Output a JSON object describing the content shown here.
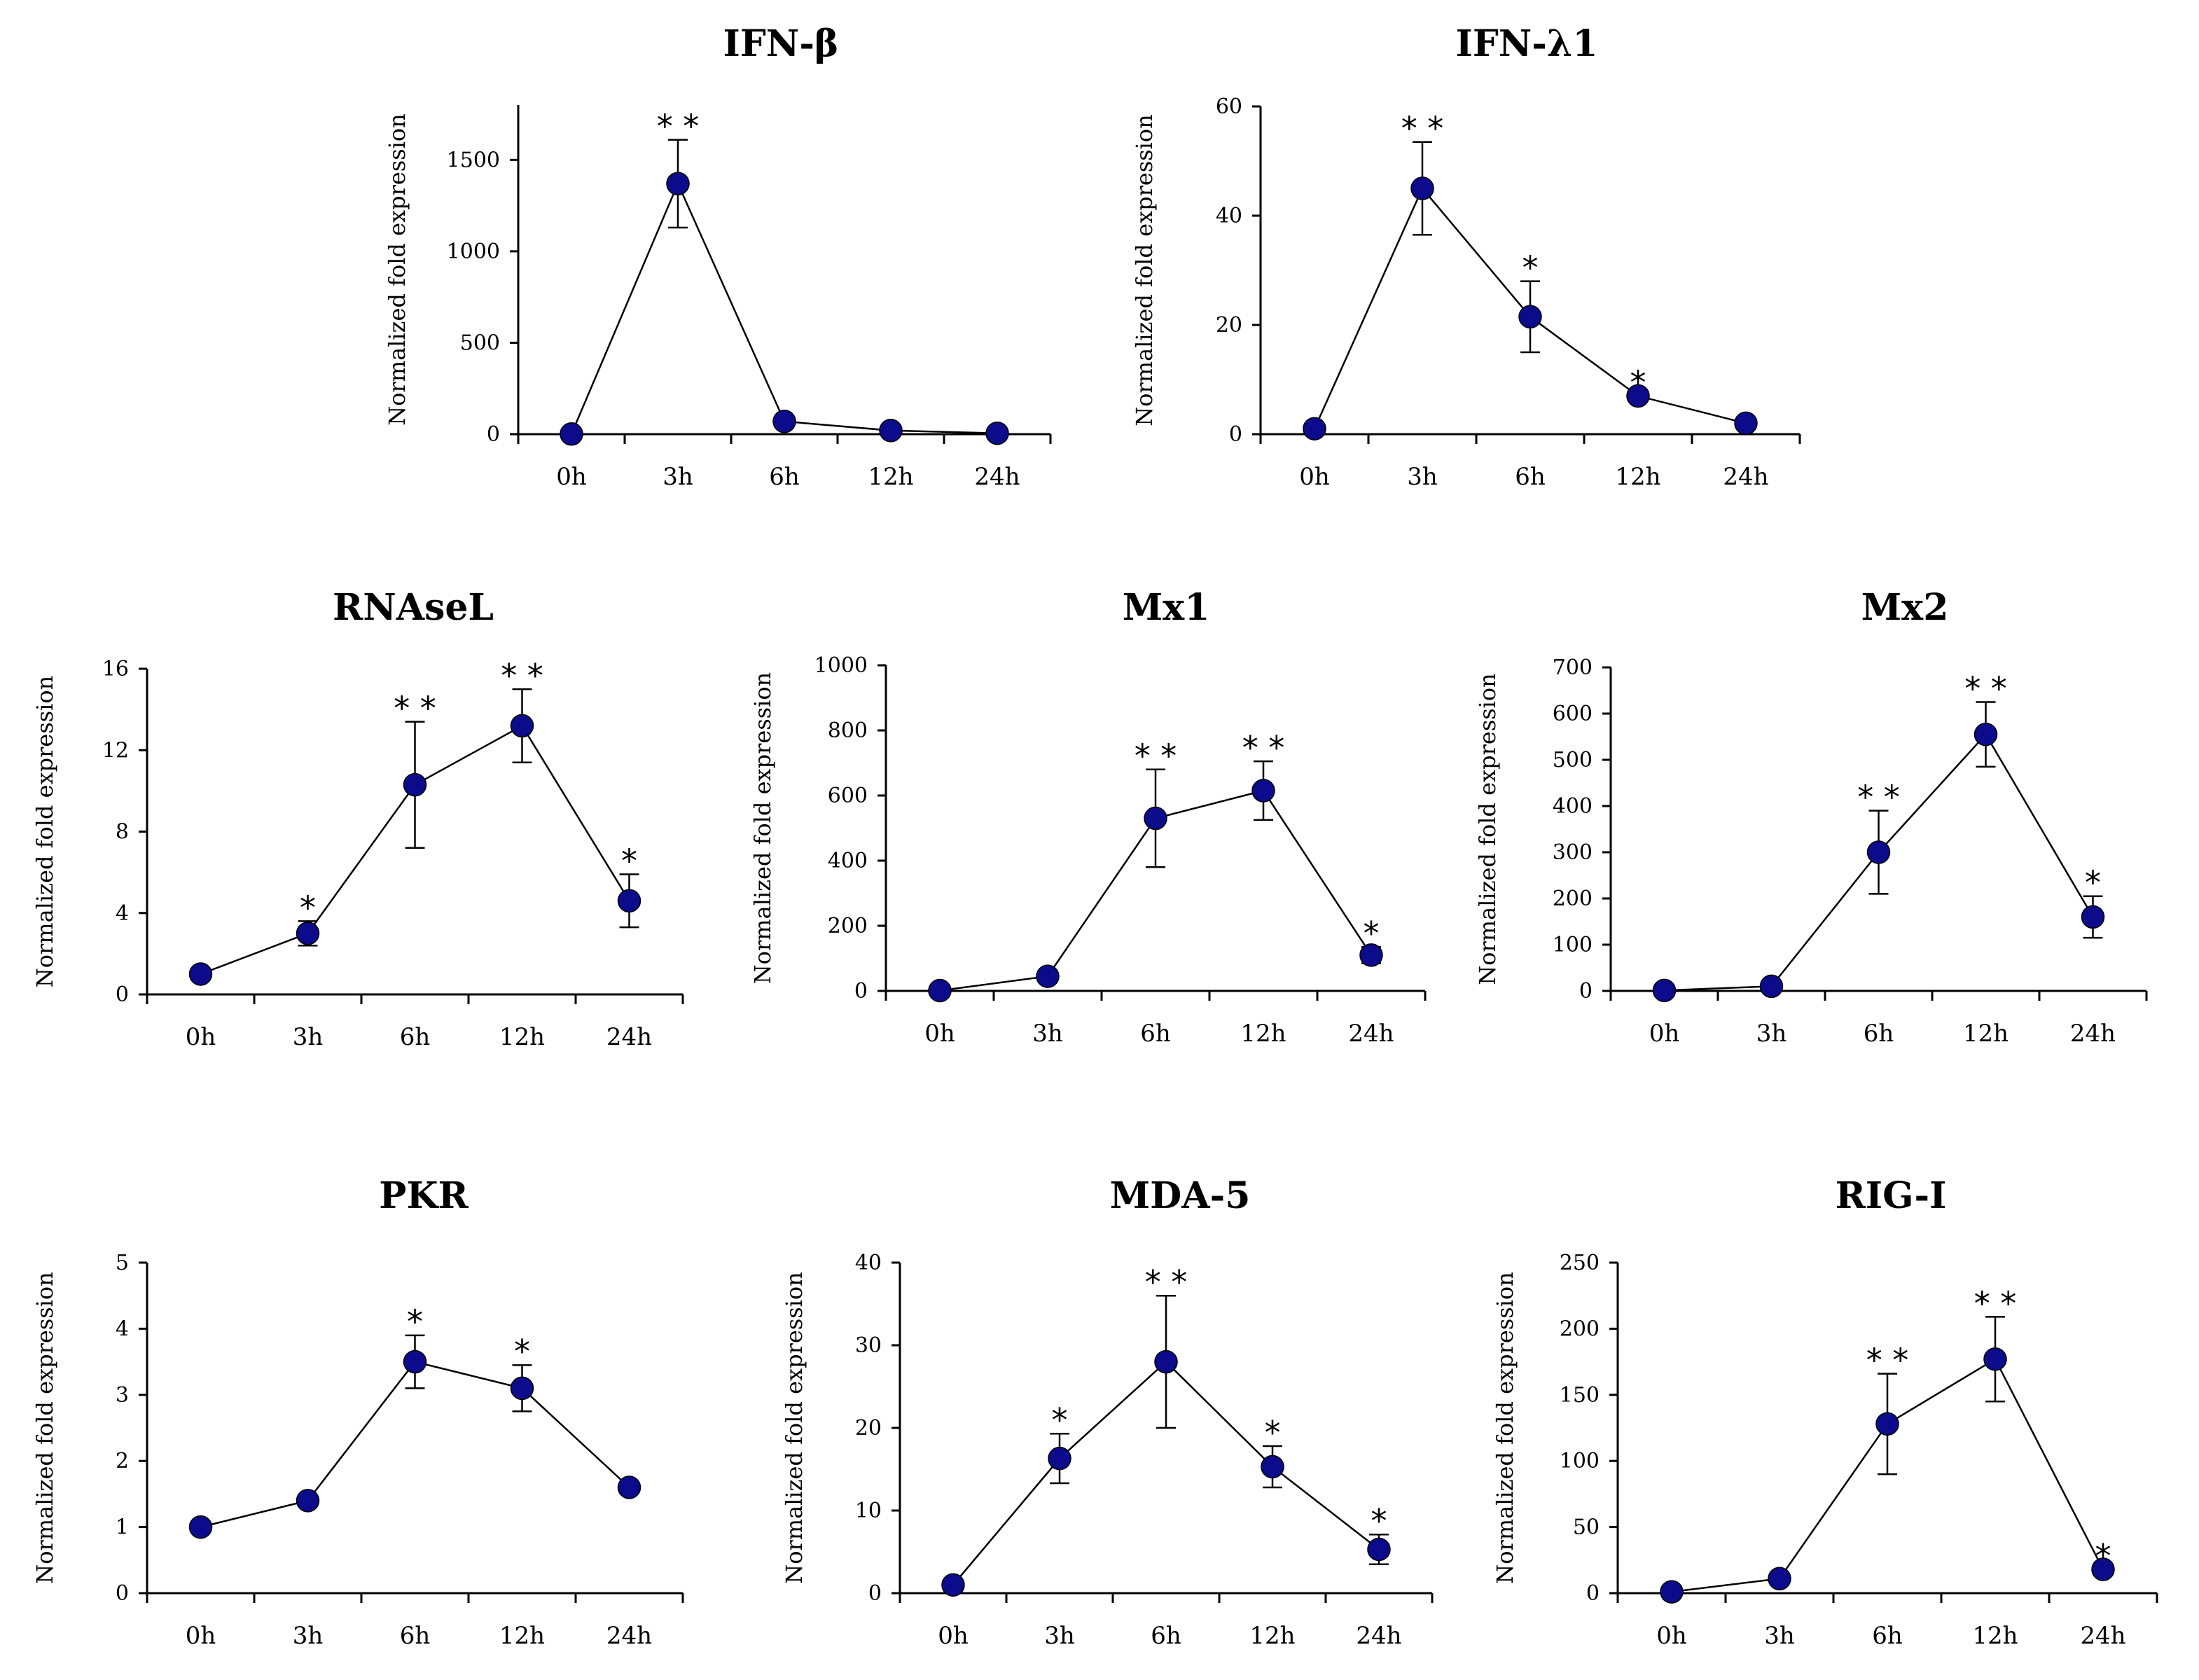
{
  "chart_data": [
    {
      "type": "line",
      "title": "IFN-β",
      "xlabel": "",
      "ylabel": "Normalized fold expression",
      "categories": [
        "0h",
        "3h",
        "6h",
        "12h",
        "24h"
      ],
      "values": [
        1,
        1370,
        70,
        20,
        5
      ],
      "errors": [
        0,
        240,
        0,
        0,
        0
      ],
      "significance": [
        "",
        "**",
        "",
        "",
        ""
      ],
      "ylim": [
        0,
        1800
      ],
      "yticks": [
        0,
        500,
        1000,
        1500
      ],
      "ytick_labels": [
        "0",
        "500",
        "1000",
        "1500"
      ]
    },
    {
      "type": "line",
      "title": "IFN-λ1",
      "xlabel": "",
      "ylabel": "Normalized fold expression",
      "categories": [
        "0h",
        "3h",
        "6h",
        "12h",
        "24h"
      ],
      "values": [
        1,
        45,
        21.5,
        7,
        2
      ],
      "errors": [
        0,
        8.5,
        6.5,
        0,
        0
      ],
      "significance": [
        "",
        "**",
        "*",
        "*",
        ""
      ],
      "ylim": [
        0,
        60
      ],
      "yticks": [
        0,
        20,
        40,
        60
      ],
      "ytick_labels": [
        "0",
        "20",
        "40",
        "60"
      ]
    },
    {
      "type": "line",
      "title": "RNAseL",
      "xlabel": "",
      "ylabel": "Normalized fold expression",
      "categories": [
        "0h",
        "3h",
        "6h",
        "12h",
        "24h"
      ],
      "values": [
        1,
        3,
        10.3,
        13.2,
        4.6
      ],
      "errors": [
        0,
        0.6,
        3.1,
        1.8,
        1.3
      ],
      "significance": [
        "",
        "*",
        "**",
        "**",
        "*"
      ],
      "ylim": [
        0,
        16
      ],
      "yticks": [
        0,
        4,
        8,
        12,
        16
      ],
      "ytick_labels": [
        "0",
        "4",
        "8",
        "12",
        "16"
      ]
    },
    {
      "type": "line",
      "title": "Mx1",
      "xlabel": "",
      "ylabel": "Normalized fold expression",
      "categories": [
        "0h",
        "3h",
        "6h",
        "12h",
        "24h"
      ],
      "values": [
        1,
        45,
        530,
        615,
        110
      ],
      "errors": [
        0,
        0,
        150,
        90,
        25
      ],
      "significance": [
        "",
        "",
        "**",
        "**",
        "*"
      ],
      "ylim": [
        0,
        1000
      ],
      "yticks": [
        0,
        200,
        400,
        600,
        800,
        1000
      ],
      "ytick_labels": [
        "0",
        "200",
        "400",
        "600",
        "800",
        "1000"
      ]
    },
    {
      "type": "line",
      "title": "Mx2",
      "xlabel": "",
      "ylabel": "Normalized fold expression",
      "categories": [
        "0h",
        "3h",
        "6h",
        "12h",
        "24h"
      ],
      "values": [
        1,
        10,
        300,
        555,
        160
      ],
      "errors": [
        0,
        0,
        90,
        70,
        45
      ],
      "significance": [
        "",
        "",
        "**",
        "**",
        "*"
      ],
      "ylim": [
        0,
        700
      ],
      "yticks": [
        0,
        100,
        200,
        300,
        400,
        500,
        600,
        700
      ],
      "ytick_labels": [
        "0",
        "100",
        "200",
        "300",
        "400",
        "500",
        "600",
        "700"
      ]
    },
    {
      "type": "line",
      "title": "PKR",
      "xlabel": "",
      "ylabel": "Normalized fold expression",
      "categories": [
        "0h",
        "3h",
        "6h",
        "12h",
        "24h"
      ],
      "values": [
        1,
        1.4,
        3.5,
        3.1,
        1.6
      ],
      "errors": [
        0,
        0,
        0.4,
        0.35,
        0
      ],
      "significance": [
        "",
        "",
        "*",
        "*",
        ""
      ],
      "ylim": [
        0,
        5
      ],
      "yticks": [
        0,
        1,
        2,
        3,
        4,
        5
      ],
      "ytick_labels": [
        "0",
        "1",
        "2",
        "3",
        "4",
        "5"
      ]
    },
    {
      "type": "line",
      "title": "MDA-5",
      "xlabel": "",
      "ylabel": "Normalized fold expression",
      "categories": [
        "0h",
        "3h",
        "6h",
        "12h",
        "24h"
      ],
      "values": [
        1,
        16.3,
        28,
        15.3,
        5.3
      ],
      "errors": [
        0,
        3,
        8,
        2.5,
        1.8
      ],
      "significance": [
        "",
        "*",
        "**",
        "*",
        "*"
      ],
      "ylim": [
        0,
        40
      ],
      "yticks": [
        0,
        10,
        20,
        30,
        40
      ],
      "ytick_labels": [
        "0",
        "10",
        "20",
        "30",
        "40"
      ]
    },
    {
      "type": "line",
      "title": "RIG-I",
      "xlabel": "",
      "ylabel": "Normalized fold expression",
      "categories": [
        "0h",
        "3h",
        "6h",
        "12h",
        "24h"
      ],
      "values": [
        1,
        11,
        128,
        177,
        18
      ],
      "errors": [
        0,
        0,
        38,
        32,
        0
      ],
      "significance": [
        "",
        "",
        "**",
        "**",
        "*"
      ],
      "ylim": [
        0,
        250
      ],
      "yticks": [
        0,
        50,
        100,
        150,
        200,
        250
      ],
      "ytick_labels": [
        "0",
        "50",
        "100",
        "150",
        "200",
        "250"
      ]
    }
  ],
  "style": {
    "marker_color": "#0b0b8c",
    "line_color": "#000000"
  }
}
